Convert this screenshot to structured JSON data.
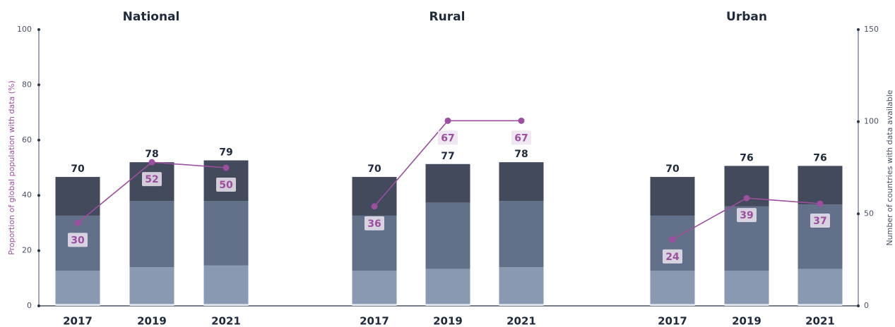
{
  "chart_data": [
    {
      "type": "bar",
      "title": "National",
      "categories": [
        "2017",
        "2019",
        "2021"
      ],
      "ylabel": "Proportion of global population with data (%)",
      "ylim": [
        0,
        100
      ],
      "yticks": [
        0,
        20,
        40,
        60,
        80,
        100
      ],
      "y2lim": [
        0,
        150
      ],
      "series": [
        {
          "color": "#e6eaf0",
          "axis": "y2",
          "values": [
            1,
            1,
            1
          ]
        },
        {
          "color": "#8a99b2",
          "axis": "y2",
          "values": [
            18,
            20,
            21
          ]
        },
        {
          "color": "#627189",
          "axis": "y2",
          "values": [
            30,
            36,
            35
          ]
        },
        {
          "color": "#434a5c",
          "axis": "y2",
          "values": [
            21,
            21,
            22
          ]
        }
      ],
      "totals": [
        70,
        78,
        79
      ],
      "line": {
        "color": "#9b4f9e",
        "values": [
          30,
          52,
          50
        ]
      }
    },
    {
      "type": "bar",
      "title": "Rural",
      "categories": [
        "2017",
        "2019",
        "2021"
      ],
      "ylim": [
        0,
        100
      ],
      "y2lim": [
        0,
        150
      ],
      "series": [
        {
          "color": "#e6eaf0",
          "axis": "y2",
          "values": [
            1,
            1,
            1
          ]
        },
        {
          "color": "#8a99b2",
          "axis": "y2",
          "values": [
            18,
            19,
            20
          ]
        },
        {
          "color": "#627189",
          "axis": "y2",
          "values": [
            30,
            36,
            36
          ]
        },
        {
          "color": "#434a5c",
          "axis": "y2",
          "values": [
            21,
            21,
            21
          ]
        }
      ],
      "totals": [
        70,
        77,
        78
      ],
      "line": {
        "color": "#9b4f9e",
        "values": [
          36,
          67,
          67
        ]
      }
    },
    {
      "type": "bar",
      "title": "Urban",
      "categories": [
        "2017",
        "2019",
        "2021"
      ],
      "ylim": [
        0,
        100
      ],
      "y2lim": [
        0,
        150
      ],
      "y2label": "Number of countries with data available",
      "y2ticks": [
        0,
        50,
        100,
        150
      ],
      "series": [
        {
          "color": "#e6eaf0",
          "axis": "y2",
          "values": [
            1,
            1,
            1
          ]
        },
        {
          "color": "#8a99b2",
          "axis": "y2",
          "values": [
            18,
            18,
            19
          ]
        },
        {
          "color": "#627189",
          "axis": "y2",
          "values": [
            30,
            35,
            35
          ]
        },
        {
          "color": "#434a5c",
          "axis": "y2",
          "values": [
            21,
            22,
            21
          ]
        }
      ],
      "totals": [
        70,
        76,
        76
      ],
      "line": {
        "color": "#9b4f9e",
        "values": [
          24,
          39,
          37
        ]
      }
    }
  ]
}
